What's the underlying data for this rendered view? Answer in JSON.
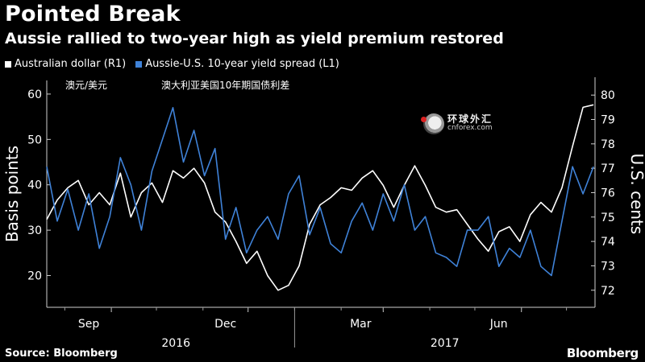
{
  "header": {
    "title": "Pointed Break",
    "subtitle": "Aussie rallied to two-year high as yield premium restored"
  },
  "annotations": {
    "cn_left": "澳元/美元",
    "cn_right": "澳大利亚美国10年期国债利差"
  },
  "watermark": {
    "cn": "环球外汇",
    "en": "cnforex.com"
  },
  "footer": {
    "source": "Source: Bloomberg",
    "brand": "Bloomberg"
  },
  "colors": {
    "aud": "#ffffff",
    "spread": "#3f82d8",
    "background": "#000000"
  },
  "chart_data": {
    "type": "line",
    "title": "Pointed Break",
    "subtitle": "Aussie rallied to two-year high as yield premium restored",
    "ylabel_left": "Basis points",
    "ylabel_right": "U.S. cents",
    "ylim_left": [
      13,
      63
    ],
    "ylim_right": [
      71.3,
      80.6
    ],
    "yticks_left": [
      20,
      30,
      40,
      50,
      60
    ],
    "yticks_right": [
      72,
      73,
      74,
      75,
      76,
      77,
      78,
      79,
      80
    ],
    "xlim": [
      "2016-07-20",
      "2017-07-20"
    ],
    "month_ticks": [
      {
        "label": "Sep",
        "date": "2016-09-01"
      },
      {
        "label": "Dec",
        "date": "2016-12-01"
      },
      {
        "label": "Mar",
        "date": "2017-03-01"
      },
      {
        "label": "Jun",
        "date": "2017-06-01"
      }
    ],
    "year_labels": [
      {
        "label": "2016",
        "date": "2016-10-14"
      },
      {
        "label": "2017",
        "date": "2017-04-11"
      }
    ],
    "year_separator": "2017-01-01",
    "grid": false,
    "legend_position": "top-left",
    "series": [
      {
        "name": "Australian dollar (R1)",
        "axis": "right",
        "color": "#ffffff",
        "x": [
          "2016-07-20",
          "2016-07-27",
          "2016-08-03",
          "2016-08-10",
          "2016-08-17",
          "2016-08-24",
          "2016-08-31",
          "2016-09-07",
          "2016-09-14",
          "2016-09-21",
          "2016-09-28",
          "2016-10-05",
          "2016-10-12",
          "2016-10-19",
          "2016-10-26",
          "2016-11-02",
          "2016-11-09",
          "2016-11-16",
          "2016-11-23",
          "2016-11-30",
          "2016-12-07",
          "2016-12-14",
          "2016-12-21",
          "2016-12-28",
          "2017-01-04",
          "2017-01-11",
          "2017-01-18",
          "2017-01-25",
          "2017-02-01",
          "2017-02-08",
          "2017-02-15",
          "2017-02-22",
          "2017-03-01",
          "2017-03-08",
          "2017-03-15",
          "2017-03-22",
          "2017-03-29",
          "2017-04-05",
          "2017-04-12",
          "2017-04-19",
          "2017-04-26",
          "2017-05-03",
          "2017-05-10",
          "2017-05-17",
          "2017-05-24",
          "2017-05-31",
          "2017-06-07",
          "2017-06-14",
          "2017-06-21",
          "2017-06-28",
          "2017-07-05",
          "2017-07-12",
          "2017-07-19"
        ],
        "values": [
          74.9,
          75.7,
          76.2,
          76.5,
          75.5,
          76.0,
          75.5,
          76.8,
          75.0,
          76.0,
          76.4,
          75.6,
          76.9,
          76.6,
          77.0,
          76.4,
          75.2,
          74.8,
          74.0,
          73.1,
          73.6,
          72.6,
          72.0,
          72.2,
          73.0,
          74.7,
          75.5,
          75.8,
          76.2,
          76.1,
          76.6,
          76.9,
          76.3,
          75.4,
          76.3,
          77.1,
          76.3,
          75.4,
          75.2,
          75.3,
          74.7,
          74.1,
          73.6,
          74.4,
          74.6,
          74.0,
          75.1,
          75.6,
          75.2,
          76.2,
          77.9,
          79.5,
          79.6
        ]
      },
      {
        "name": "Aussie-U.S. 10-year yield spread (L1)",
        "axis": "left",
        "color": "#3f82d8",
        "x": [
          "2016-07-20",
          "2016-07-27",
          "2016-08-03",
          "2016-08-10",
          "2016-08-17",
          "2016-08-24",
          "2016-08-31",
          "2016-09-07",
          "2016-09-14",
          "2016-09-21",
          "2016-09-28",
          "2016-10-05",
          "2016-10-12",
          "2016-10-19",
          "2016-10-26",
          "2016-11-02",
          "2016-11-09",
          "2016-11-16",
          "2016-11-23",
          "2016-11-30",
          "2016-12-07",
          "2016-12-14",
          "2016-12-21",
          "2016-12-28",
          "2017-01-04",
          "2017-01-11",
          "2017-01-18",
          "2017-01-25",
          "2017-02-01",
          "2017-02-08",
          "2017-02-15",
          "2017-02-22",
          "2017-03-01",
          "2017-03-08",
          "2017-03-15",
          "2017-03-22",
          "2017-03-29",
          "2017-04-05",
          "2017-04-12",
          "2017-04-19",
          "2017-04-26",
          "2017-05-03",
          "2017-05-10",
          "2017-05-17",
          "2017-05-24",
          "2017-05-31",
          "2017-06-07",
          "2017-06-14",
          "2017-06-21",
          "2017-06-28",
          "2017-07-05",
          "2017-07-12",
          "2017-07-19"
        ],
        "values": [
          44,
          32,
          39,
          30,
          38,
          26,
          33,
          46,
          40,
          30,
          43,
          50,
          57,
          45,
          52,
          42,
          48,
          28,
          35,
          25,
          30,
          33,
          28,
          38,
          42,
          29,
          35,
          27,
          25,
          32,
          36,
          30,
          38,
          32,
          40,
          30,
          33,
          25,
          24,
          22,
          30,
          30,
          33,
          22,
          26,
          24,
          30,
          22,
          20,
          32,
          44,
          38,
          44
        ]
      }
    ]
  }
}
